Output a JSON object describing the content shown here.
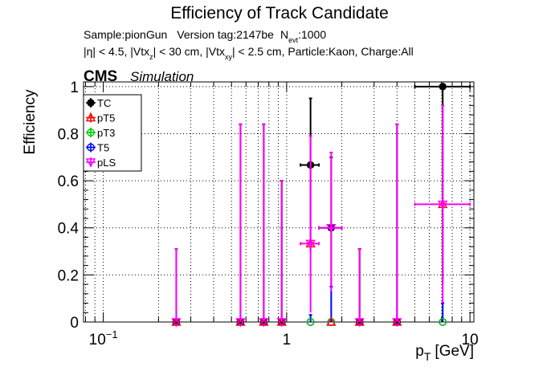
{
  "title": "Efficiency of Track Candidate",
  "subtitle1": {
    "sample": "Sample:pionGun",
    "version": "Version tag:2147be",
    "nevt_n": "N",
    "nevt_sub": "evt",
    "nevt_val": ":1000"
  },
  "subtitle2": {
    "part1": "|η| < 4.5, |Vtx",
    "sub1": "z",
    "part2": "| < 30 cm, |Vtx",
    "sub2": "xy",
    "part3": "| < 2.5 cm, Particle:Kaon, Charge:All"
  },
  "cms_label": "CMS",
  "sim_label": "Simulation",
  "chart_data": {
    "type": "scatter",
    "title": "Efficiency of Track Candidate",
    "ylabel": "Efficiency",
    "xlabel_main": "p",
    "xlabel_sub": "T",
    "xlabel_unit": "[GeV]",
    "xscale": "log",
    "xlim": [
      0.078,
      10.5
    ],
    "ylim": [
      0,
      1.02
    ],
    "grid": true,
    "legend_position": "top-left",
    "yticks": [
      {
        "v": 0,
        "label": "0"
      },
      {
        "v": 0.2,
        "label": "0.2"
      },
      {
        "v": 0.4,
        "label": "0.4"
      },
      {
        "v": 0.6,
        "label": "0.6"
      },
      {
        "v": 0.8,
        "label": "0.8"
      },
      {
        "v": 1,
        "label": "1"
      }
    ],
    "xticks": [
      {
        "v": 0.1,
        "base": "10",
        "exp": "−1"
      },
      {
        "v": 1,
        "base": "1",
        "exp": ""
      },
      {
        "v": 10,
        "base": "10",
        "exp": ""
      }
    ],
    "series": [
      {
        "name": "TC",
        "color": "#000000",
        "marker": "filled-circle",
        "points": [
          {
            "x": 0.25,
            "y": 0,
            "ylo": 0,
            "yhi": 0.31
          },
          {
            "x": 0.56,
            "y": 0,
            "ylo": 0,
            "yhi": 0.84
          },
          {
            "x": 0.75,
            "y": 0,
            "ylo": 0,
            "yhi": 0.84
          },
          {
            "x": 0.94,
            "y": 0,
            "ylo": 0,
            "yhi": 0.6
          },
          {
            "x": 1.35,
            "y": 0.667,
            "xlo": 1.19,
            "xhi": 1.5,
            "ylo": 0.3,
            "yhi": 0.95
          },
          {
            "x": 1.75,
            "y": 0.4,
            "xlo": 1.5,
            "xhi": 2.0,
            "ylo": 0.15,
            "yhi": 0.7
          },
          {
            "x": 2.5,
            "y": 0,
            "ylo": 0,
            "yhi": 0.31
          },
          {
            "x": 4.0,
            "y": 0,
            "ylo": 0,
            "yhi": 0.84
          },
          {
            "x": 7.1,
            "y": 1.0,
            "xlo": 5.0,
            "xhi": 10.0,
            "ylo": 0.16,
            "yhi": 1.0
          }
        ]
      },
      {
        "name": "pT5",
        "color": "#ff0000",
        "marker": "open-triangle",
        "points": [
          {
            "x": 0.25,
            "y": 0
          },
          {
            "x": 0.56,
            "y": 0
          },
          {
            "x": 0.75,
            "y": 0
          },
          {
            "x": 0.94,
            "y": 0
          },
          {
            "x": 1.35,
            "y": 0.333
          },
          {
            "x": 1.75,
            "y": 0
          },
          {
            "x": 2.5,
            "y": 0
          },
          {
            "x": 4.0,
            "y": 0
          },
          {
            "x": 7.1,
            "y": 0.5
          }
        ]
      },
      {
        "name": "pT3",
        "color": "#00c800",
        "marker": "open-circle",
        "points": [
          {
            "x": 0.25,
            "y": 0
          },
          {
            "x": 0.56,
            "y": 0
          },
          {
            "x": 0.75,
            "y": 0
          },
          {
            "x": 0.94,
            "y": 0
          },
          {
            "x": 1.35,
            "y": 0
          },
          {
            "x": 1.75,
            "y": 0
          },
          {
            "x": 2.5,
            "y": 0
          },
          {
            "x": 4.0,
            "y": 0
          },
          {
            "x": 7.1,
            "y": 0
          }
        ]
      },
      {
        "name": "T5",
        "color": "#0000ff",
        "marker": "open-circle",
        "points": [
          {
            "x": 0.25,
            "y": 0
          },
          {
            "x": 0.56,
            "y": 0
          },
          {
            "x": 0.75,
            "y": 0
          },
          {
            "x": 0.94,
            "y": 0
          },
          {
            "x": 1.35,
            "y": 0,
            "ylo": 0,
            "yhi": 0.03
          },
          {
            "x": 1.75,
            "y": 0,
            "ylo": 0,
            "yhi": 0.15
          },
          {
            "x": 2.5,
            "y": 0
          },
          {
            "x": 4.0,
            "y": 0
          },
          {
            "x": 7.1,
            "y": 0,
            "ylo": 0,
            "yhi": 0.08
          }
        ]
      },
      {
        "name": "pLS",
        "color": "#ff00ff",
        "marker": "open-triangle-down",
        "points": [
          {
            "x": 0.25,
            "y": 0,
            "ylo": 0,
            "yhi": 0.31
          },
          {
            "x": 0.56,
            "y": 0,
            "ylo": 0,
            "yhi": 0.84
          },
          {
            "x": 0.75,
            "y": 0,
            "ylo": 0,
            "yhi": 0.84
          },
          {
            "x": 0.94,
            "y": 0,
            "ylo": 0,
            "yhi": 0.6
          },
          {
            "x": 1.35,
            "y": 0.333,
            "xlo": 1.19,
            "xhi": 1.5,
            "ylo": 0.04,
            "yhi": 0.79
          },
          {
            "x": 1.75,
            "y": 0.4,
            "xlo": 1.5,
            "xhi": 2.0,
            "ylo": 0.13,
            "yhi": 0.72
          },
          {
            "x": 2.5,
            "y": 0,
            "ylo": 0,
            "yhi": 0.31
          },
          {
            "x": 4.0,
            "y": 0,
            "ylo": 0,
            "yhi": 0.84
          },
          {
            "x": 7.1,
            "y": 0.5,
            "xlo": 5.0,
            "xhi": 10.0,
            "ylo": 0.08,
            "yhi": 0.92
          }
        ]
      }
    ]
  }
}
